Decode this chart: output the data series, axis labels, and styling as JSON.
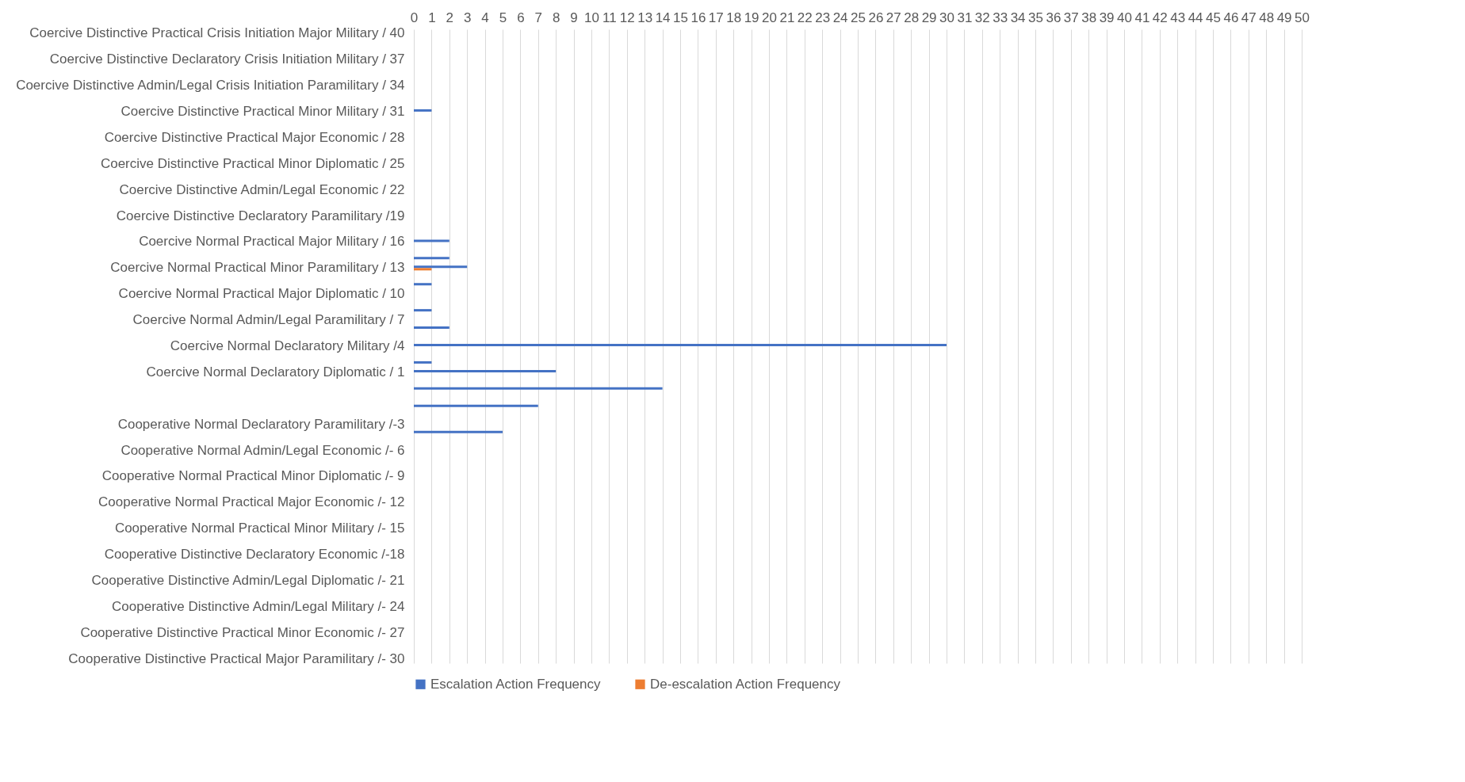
{
  "chart_data": {
    "type": "bar",
    "orientation": "horizontal",
    "categories": [
      "Coercive Distinctive Practical Crisis Initiation Major Military / 40",
      null,
      null,
      "Coercive Distinctive Declaratory Crisis Initiation Military / 37",
      null,
      null,
      "Coercive Distinctive Admin/Legal Crisis Initiation Paramilitary  / 34",
      null,
      null,
      "Coercive Distinctive Practical  Minor Military / 31",
      null,
      null,
      "Coercive Distinctive Practical Major Economic / 28",
      null,
      null,
      "Coercive Distinctive Practical Minor Diplomatic / 25",
      null,
      null,
      "Coercive Distinctive Admin/Legal Economic / 22",
      null,
      null,
      "Coercive Distinctive Declaratory Paramilitary /19",
      null,
      null,
      "Coercive Normal Practical Major Military / 16",
      null,
      null,
      "Coercive Normal Practical Minor Paramilitary / 13",
      null,
      null,
      "Coercive Normal Practical Major Diplomatic / 10",
      null,
      null,
      "Coercive Normal Admin/Legal Paramilitary / 7",
      null,
      null,
      "Coercive Normal Declaratory Military /4",
      null,
      null,
      "Coercive Normal Declaratory Diplomatic / 1",
      null,
      null,
      null,
      null,
      null,
      "Cooperative Normal Declaratory Paramilitary /-3",
      null,
      null,
      "Cooperative Normal Admin/Legal Economic /- 6",
      null,
      null,
      "Cooperative Normal Practical Minor Diplomatic /- 9",
      null,
      null,
      "Cooperative Normal Practical Major Economic /- 12",
      null,
      null,
      "Cooperative Normal Practical Minor Military /- 15",
      null,
      null,
      "Cooperative Distinctive Declaratory Economic /-18",
      null,
      null,
      "Cooperative Distinctive Admin/Legal Diplomatic /- 21",
      null,
      null,
      "Cooperative Distinctive Admin/Legal Military /- 24",
      null,
      null,
      "Cooperative Distinctive Practical Minor Economic /- 27",
      null,
      null,
      "Cooperative Distinctive Practical Major Paramilitary /- 30"
    ],
    "series": [
      {
        "name": "Escalation Action Frequency",
        "color": "#4472c4",
        "values": [
          null,
          null,
          null,
          null,
          null,
          null,
          null,
          null,
          null,
          1,
          null,
          null,
          null,
          null,
          null,
          null,
          null,
          null,
          null,
          null,
          null,
          null,
          null,
          null,
          2,
          null,
          2,
          3,
          null,
          1,
          null,
          null,
          1,
          null,
          2,
          null,
          30,
          null,
          1,
          8,
          null,
          14,
          null,
          7,
          null,
          null,
          5,
          null,
          null,
          null,
          null,
          null,
          null,
          null,
          null,
          null,
          null,
          null,
          null,
          null,
          null,
          null,
          null,
          null,
          null,
          null,
          null,
          null,
          null,
          null,
          null,
          null,
          null
        ]
      },
      {
        "name": "De-escalation Action Frequency",
        "color": "#ed7d31",
        "values": [
          null,
          null,
          null,
          null,
          null,
          null,
          null,
          null,
          null,
          null,
          null,
          null,
          null,
          null,
          null,
          null,
          null,
          null,
          null,
          null,
          null,
          null,
          null,
          null,
          null,
          null,
          null,
          1,
          null,
          null,
          null,
          null,
          null,
          null,
          null,
          null,
          null,
          null,
          null,
          null,
          null,
          null,
          null,
          null,
          null,
          null,
          null,
          null,
          null,
          null,
          null,
          null,
          null,
          null,
          null,
          null,
          null,
          null,
          null,
          null,
          null,
          null,
          null,
          null,
          null,
          null,
          null,
          null,
          null,
          null,
          null,
          null,
          null
        ]
      }
    ],
    "xlim": [
      0,
      50
    ],
    "xticks": [
      0,
      1,
      2,
      3,
      4,
      5,
      6,
      7,
      8,
      9,
      10,
      11,
      12,
      13,
      14,
      15,
      16,
      17,
      18,
      19,
      20,
      21,
      22,
      23,
      24,
      25,
      26,
      27,
      28,
      29,
      30,
      31,
      32,
      33,
      34,
      35,
      36,
      37,
      38,
      39,
      40,
      41,
      42,
      43,
      44,
      45,
      46,
      47,
      48,
      49,
      50
    ],
    "grid": "x",
    "legend": "bottom"
  }
}
